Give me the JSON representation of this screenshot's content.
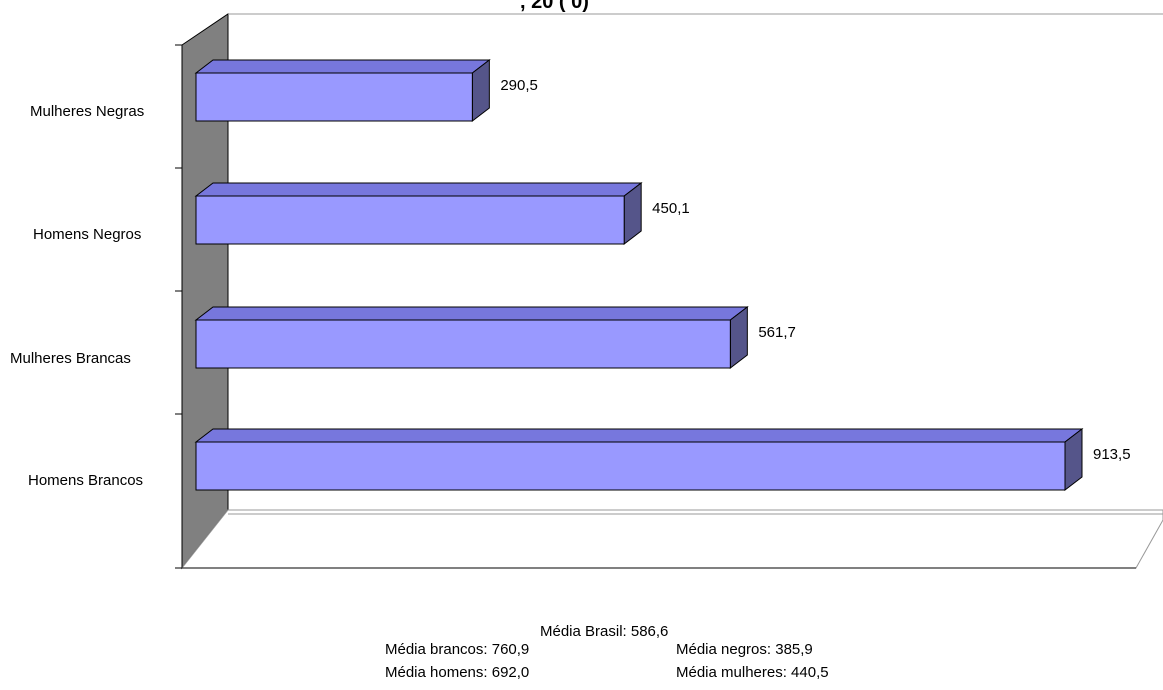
{
  "chart_data": {
    "type": "bar",
    "orientation": "horizontal",
    "style": "3d",
    "title_fragment": ", 20 ( 0)",
    "categories": [
      "Homens Brancos",
      "Mulheres Brancas",
      "Homens Negros",
      "Mulheres Negras"
    ],
    "values": [
      913.5,
      561.7,
      450.1,
      290.5
    ],
    "value_labels": [
      "913,5",
      "561,7",
      "450,1",
      "290,5"
    ],
    "xlim": [
      0,
      1000
    ],
    "colors": {
      "bar_front": "#9999ff",
      "bar_top": "#7777dd",
      "bar_side": "#55558a",
      "wall": "#808080"
    }
  },
  "stats": {
    "brasil": "Média Brasil: 586,6",
    "brancos": "Média brancos: 760,9",
    "negros": "Média negros: 385,9",
    "homens": "Média homens: 692,0",
    "mulheres": "Média mulheres: 440,5"
  }
}
